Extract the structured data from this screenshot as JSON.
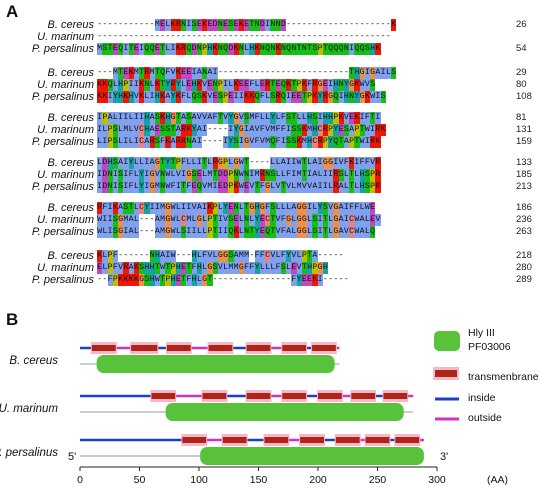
{
  "panel_a_label": "A",
  "panel_b_label": "B",
  "alignment_blocks": [
    {
      "rows": [
        {
          "species": "B. cereus",
          "seq": "-----------MELKRNISEKEDNESEKETNDINND--------------------K",
          "num": "26"
        },
        {
          "species": "U. marinum",
          "seq": "--------------------------------------------------------",
          "num": ""
        },
        {
          "species": "P. persalinus",
          "seq": "MSTEQITEIQQETLIKRQDNPHKNQDKNLHKNQNKNQNTNTSPTQQQNIQQSHK",
          "num": "54"
        }
      ]
    },
    {
      "rows": [
        {
          "species": "B. cereus",
          "seq": "---MTEKMTRMTQFVKEEIANAI-------------------------THGIGAILS",
          "num": "29"
        },
        {
          "species": "U. marinum",
          "seq": "KKQLHPIIKNLKTYRYLEHKVENPILKEEFLERTEQKTPKFRGEIHNYGKWVS",
          "num": "80"
        },
        {
          "species": "P. persalinus",
          "seq": "KKIYHKHVKLIHKAYKFLQSKVESPEIIKKQFLSRQIEETPKYRGQIHNYGKWIS",
          "num": "108"
        }
      ]
    },
    {
      "rows": [
        {
          "species": "B. cereus",
          "seq": "IPALIILIIHASKHGTASAVVAFTVYGVSMFLLYLFSTLLHSIHHPKVEKIFTI",
          "num": "81"
        },
        {
          "species": "U. marinum",
          "seq": "ILPSLMLVCHAESSTARKYAI----IYGIAVFVMFFISSKMHCRPYESAPTWIRK",
          "num": "131"
        },
        {
          "species": "P. persalinus",
          "seq": "LIPSLILICARSFKARRNAI----IYSIGVFVMQFISSKMHCRPYQTAPTWIRK",
          "num": "159"
        }
      ]
    },
    {
      "rows": [
        {
          "species": "B. cereus",
          "seq": "LDHSAIYLLIAGTYTPFLLITLRGPLGWT----LLAIIWTLAIGGIVFKIFFVR",
          "num": "133"
        },
        {
          "species": "U. marinum",
          "seq": "IDNISIFLYIGVNWLVIGSELMTDDPNWNIMRNSLLFIMTIALIIRSLTLHSPR",
          "num": "185"
        },
        {
          "species": "P. persalinus",
          "seq": "IDNISIFLYIGMNWFITFEQVMIEDPKWEVTFGLVTVLMVVAIILRALTLHSPR",
          "num": "213"
        }
      ]
    },
    {
      "rows": [
        {
          "species": "B. cereus",
          "seq": "RFIKASTLCYIIMGWLIIVAIKPLYENLTGHGFSLLLAGGILYSVGAIFFLWE",
          "num": "186"
        },
        {
          "species": "U. marinum",
          "seq": "WIISGMAL---AMGWLCMLGLPTIVSELNLYECTVFGLGGLSITLGAICWALEV",
          "num": "236"
        },
        {
          "species": "P. persalinus",
          "seq": "WLISGIAL---AMGWLSIILLPTIIQKLNTYEQTVFALGGLSITLGAVCWALQ",
          "num": "263"
        }
      ]
    },
    {
      "rows": [
        {
          "species": "B. cereus",
          "seq": "KLPF------NHAIW---HLFVLGGSAMM-FFCVLFYVLPTA-----",
          "num": "218"
        },
        {
          "species": "U. marinum",
          "seq": "ELPFVRAKSHHTWTPHETFHLGSVLMMGFFYLLLFSLEVTHPGH",
          "num": "280"
        },
        {
          "species": "P. persalinus",
          "seq": "--FPKKKKGSHWTPHETFHLGT---------------FYEEKI-----",
          "num": "289"
        }
      ]
    }
  ],
  "domain_map": {
    "species": [
      "B. cereus",
      "U. marinum",
      "P. persalinus"
    ],
    "lengths": [
      218,
      280,
      289
    ],
    "pfam_domains": [
      [
        14,
        214
      ],
      [
        72,
        272
      ],
      [
        101,
        289
      ]
    ],
    "tm_helices": [
      [
        [
          10,
          30
        ],
        [
          43,
          65
        ],
        [
          73,
          93
        ],
        [
          108,
          128
        ],
        [
          140,
          160
        ],
        [
          170,
          190
        ],
        [
          195,
          215
        ]
      ],
      [
        [
          60,
          80
        ],
        [
          103,
          123
        ],
        [
          140,
          160
        ],
        [
          170,
          190
        ],
        [
          200,
          220
        ],
        [
          228,
          248
        ],
        [
          255,
          275
        ]
      ],
      [
        [
          86,
          106
        ],
        [
          120,
          140
        ],
        [
          155,
          175
        ],
        [
          185,
          205
        ],
        [
          215,
          235
        ],
        [
          240,
          260
        ],
        [
          265,
          285
        ]
      ]
    ],
    "axis_ticks": [
      "0",
      "50",
      "100",
      "150",
      "200",
      "250",
      "300"
    ],
    "axis_unit": "(AA)",
    "five_prime": "5'",
    "three_prime": "3'"
  },
  "legend": {
    "pfam_label_1": "Hly III",
    "pfam_label_2": "PF03006",
    "tm_label": "transmenbrane",
    "inside_label": "inside",
    "outside_label": "outside"
  },
  "colors": {
    "pfam": "#58c23b",
    "tm": "#b02418",
    "tm_halo": "#f4b8c8",
    "inside": "#1a3fd0",
    "outside": "#cc33cc"
  }
}
